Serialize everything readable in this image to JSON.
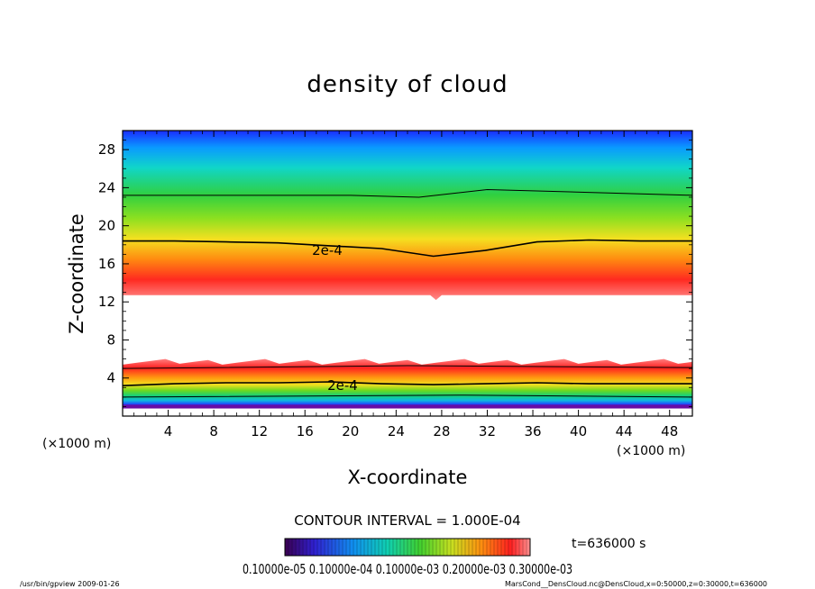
{
  "chart_data": {
    "type": "heatmap",
    "title": "density of cloud",
    "xlabel": "X-coordinate",
    "ylabel": "Z-coordinate",
    "x_unit": "(×1000 m)",
    "y_unit": "(×1000 m)",
    "xlim": [
      0,
      50
    ],
    "ylim": [
      0,
      30
    ],
    "x_ticks": [
      4,
      8,
      12,
      16,
      20,
      24,
      28,
      32,
      36,
      40,
      44,
      48
    ],
    "y_ticks": [
      4,
      8,
      12,
      16,
      20,
      24,
      28
    ],
    "contour_label": "2e-4",
    "contour_interval": "CONTOUR INTERVAL = 1.000E-04",
    "time_label": "t=636000 s",
    "colorbar_labels": "0.10000e-05 0.10000e-04 0.10000e-03 0.20000e-03 0.30000e-03",
    "upper_cloud_layer": {
      "z_base": 12.7,
      "z_top": 30,
      "contour_2e4_z": [
        18.4,
        18.4,
        18.3,
        18.2,
        17.9,
        17.6,
        16.8,
        17.4,
        18.3,
        18.5,
        18.4,
        18.4
      ]
    },
    "lower_cloud_layer": {
      "z_base": 0.8,
      "z_top": 5.8,
      "contour_2e4_z": [
        3.2,
        3.4,
        3.5,
        3.5,
        3.6,
        3.4,
        3.3,
        3.4,
        3.5,
        3.4,
        3.4,
        3.4
      ]
    }
  },
  "footer": {
    "left": "/usr/bin/gpview   2009-01-26",
    "right": "MarsCond__DensCloud.nc@DensCloud,x=0:50000,z=0:30000,t=636000"
  },
  "colors": {
    "low": "#5a0090",
    "mid": "#20c820",
    "high": "#ff2020",
    "top": "#1030ff"
  }
}
